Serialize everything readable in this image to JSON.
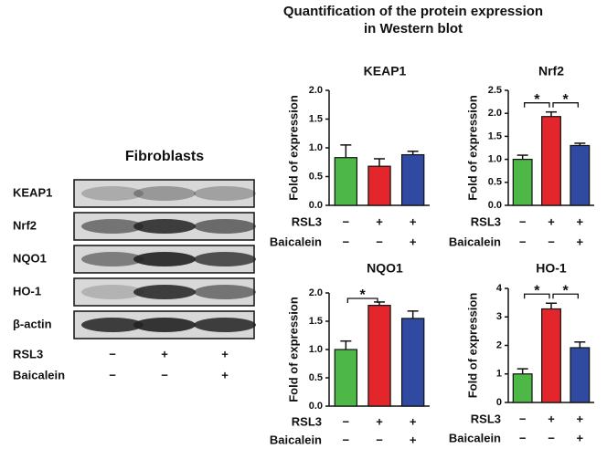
{
  "title": [
    "Quantification of the protein expression",
    "in Western blot"
  ],
  "blot": {
    "title": "Fibroblasts",
    "rows": [
      "KEAP1",
      "Nrf2",
      "NQO1",
      "HO-1",
      "β-actin"
    ],
    "conditions": [
      {
        "label": "RSL3",
        "signs": [
          "−",
          "+",
          "+"
        ]
      },
      {
        "label": "Baicalein",
        "signs": [
          "−",
          "−",
          "+"
        ]
      }
    ]
  },
  "chart_data": [
    {
      "type": "bar",
      "title": "KEAP1",
      "ylabel": "Fold of expression",
      "categories": [
        null,
        null,
        null
      ],
      "values": [
        0.83,
        0.68,
        0.88
      ],
      "errors": [
        0.22,
        0.13,
        0.06
      ],
      "colors": [
        "#4db848",
        "#e3262b",
        "#2f4aa0"
      ],
      "ylim": [
        0,
        2
      ],
      "yticks": [
        {
          "value": 0,
          "label": "0.0"
        },
        0.5,
        {
          "value": 1,
          "label": "1.0"
        },
        1.5,
        {
          "value": 2,
          "label": "2.0"
        }
      ],
      "conditions": [
        {
          "label": "RSL3",
          "signs": [
            "−",
            "+",
            "+"
          ]
        },
        {
          "label": "Baicalein",
          "signs": [
            "−",
            "−",
            "+"
          ]
        }
      ],
      "annotations": []
    },
    {
      "type": "bar",
      "title": "Nrf2",
      "ylabel": "Fold of expression",
      "categories": [
        null,
        null,
        null
      ],
      "values": [
        1.0,
        1.93,
        1.3
      ],
      "errors": [
        0.09,
        0.1,
        0.05
      ],
      "colors": [
        "#4db848",
        "#e3262b",
        "#2f4aa0"
      ],
      "ylim": [
        0,
        2.5
      ],
      "yticks": [
        {
          "value": 0,
          "label": "0.0"
        },
        0.5,
        {
          "value": 1,
          "label": "1.0"
        },
        1.5,
        {
          "value": 2,
          "label": "2.0"
        },
        2.5
      ],
      "conditions": [
        {
          "label": "RSL3",
          "signs": [
            "−",
            "+",
            "+"
          ]
        },
        {
          "label": "Baicalein",
          "signs": [
            "−",
            "−",
            "+"
          ]
        }
      ],
      "annotations": [
        {
          "text": "*",
          "from": 0,
          "to": 1
        },
        {
          "text": "*",
          "from": 1,
          "to": 2
        }
      ]
    },
    {
      "type": "bar",
      "title": "NQO1",
      "ylabel": "Fold of expression",
      "categories": [
        null,
        null,
        null
      ],
      "values": [
        1.0,
        1.78,
        1.55
      ],
      "errors": [
        0.15,
        0.06,
        0.13
      ],
      "colors": [
        "#4db848",
        "#e3262b",
        "#2f4aa0"
      ],
      "ylim": [
        0,
        2
      ],
      "yticks": [
        {
          "value": 0,
          "label": "0.0"
        },
        0.5,
        {
          "value": 1,
          "label": "1.0"
        },
        1.5,
        {
          "value": 2,
          "label": "2.0"
        }
      ],
      "conditions": [
        {
          "label": "RSL3",
          "signs": [
            "−",
            "+",
            "+"
          ]
        },
        {
          "label": "Baicalein",
          "signs": [
            "−",
            "−",
            "+"
          ]
        }
      ],
      "annotations": [
        {
          "text": "*",
          "from": 0,
          "to": 1
        }
      ]
    },
    {
      "type": "bar",
      "title": "HO-1",
      "ylabel": "Fold of expression",
      "categories": [
        null,
        null,
        null
      ],
      "values": [
        1.0,
        3.28,
        1.92
      ],
      "errors": [
        0.18,
        0.2,
        0.2
      ],
      "colors": [
        "#4db848",
        "#e3262b",
        "#2f4aa0"
      ],
      "ylim": [
        0,
        4
      ],
      "yticks": [
        0,
        1,
        2,
        3,
        4
      ],
      "conditions": [
        {
          "label": "RSL3",
          "signs": [
            "−",
            "+",
            "+"
          ]
        },
        {
          "label": "Baicalein",
          "signs": [
            "−",
            "−",
            "+"
          ]
        }
      ],
      "annotations": [
        {
          "text": "*",
          "from": 0,
          "to": 1
        },
        {
          "text": "*",
          "from": 1,
          "to": 2
        }
      ]
    }
  ]
}
